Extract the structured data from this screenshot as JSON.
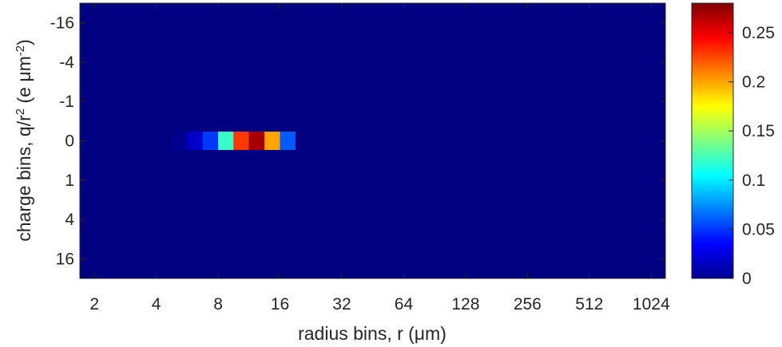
{
  "chart_data": {
    "type": "heatmap",
    "title": "",
    "xlabel": "radius bins, r (μm)",
    "ylabel": "charge bins, q/r² (e μm⁻²)",
    "ylabel_parts": {
      "main": "charge bins, q/r",
      "sup1": "2",
      "mid": " (e μm",
      "sup2": "-2",
      "end": ")"
    },
    "x_scale": "log2",
    "xlim": [
      1.7,
      1200
    ],
    "x_ticks": [
      2,
      4,
      8,
      16,
      32,
      64,
      128,
      256,
      512,
      1024
    ],
    "x_tick_labels": [
      "2",
      "4",
      "8",
      "16",
      "32",
      "64",
      "128",
      "256",
      "512",
      "1024"
    ],
    "y_tick_labels": [
      "-16",
      "-4",
      "-1",
      "0",
      "1",
      "4",
      "16"
    ],
    "y_reversed": true,
    "colormap": "jet",
    "background_value": 0,
    "colorbar": {
      "min": 0,
      "max": 0.28,
      "ticks": [
        0,
        0.05,
        0.1,
        0.15,
        0.2,
        0.25
      ],
      "tick_labels": [
        "0",
        "0.05",
        "0.1",
        "0.15",
        "0.2",
        "0.25"
      ]
    },
    "cells": [
      {
        "charge": "0",
        "r_from": 4.76,
        "r_to": 5.66,
        "value": 0.005
      },
      {
        "charge": "0",
        "r_from": 5.66,
        "r_to": 6.73,
        "value": 0.02
      },
      {
        "charge": "0",
        "r_from": 6.73,
        "r_to": 8.0,
        "value": 0.05
      },
      {
        "charge": "0",
        "r_from": 8.0,
        "r_to": 9.51,
        "value": 0.12
      },
      {
        "charge": "0",
        "r_from": 9.51,
        "r_to": 11.3,
        "value": 0.23
      },
      {
        "charge": "0",
        "r_from": 11.3,
        "r_to": 13.45,
        "value": 0.27
      },
      {
        "charge": "0",
        "r_from": 13.45,
        "r_to": 16.0,
        "value": 0.2
      },
      {
        "charge": "0",
        "r_from": 16.0,
        "r_to": 19.03,
        "value": 0.06
      }
    ]
  }
}
